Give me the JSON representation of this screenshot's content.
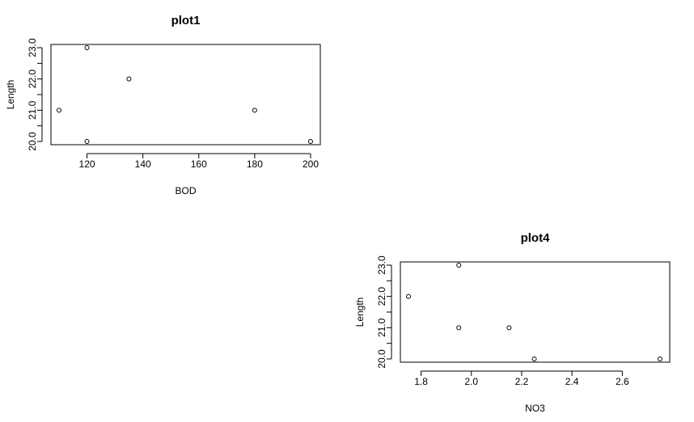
{
  "chart_data": [
    {
      "type": "scatter",
      "title": "plot1",
      "xlabel": "BOD",
      "ylabel": "Length",
      "xlim": [
        110,
        200
      ],
      "ylim": [
        20,
        23
      ],
      "xticks": [
        120,
        140,
        160,
        180,
        200
      ],
      "yticks": [
        20,
        21,
        22,
        23
      ],
      "xtick_labels": [
        "120",
        "140",
        "160",
        "180",
        "200"
      ],
      "ytick_labels": [
        "20.0",
        "21.0",
        "22.0",
        "23.0"
      ],
      "grid": false,
      "points": [
        {
          "x": 110,
          "y": 21
        },
        {
          "x": 120,
          "y": 23
        },
        {
          "x": 120,
          "y": 20
        },
        {
          "x": 135,
          "y": 22
        },
        {
          "x": 180,
          "y": 21
        },
        {
          "x": 200,
          "y": 20
        }
      ]
    },
    {
      "type": "scatter",
      "title": "plot4",
      "xlabel": "NO3",
      "ylabel": "Length",
      "xlim": [
        1.75,
        2.75
      ],
      "ylim": [
        20,
        23
      ],
      "xticks": [
        1.8,
        2.0,
        2.2,
        2.4,
        2.6
      ],
      "yticks": [
        20,
        21,
        22,
        23
      ],
      "xtick_labels": [
        "1.8",
        "2.0",
        "2.2",
        "2.4",
        "2.6"
      ],
      "ytick_labels": [
        "20.0",
        "21.0",
        "22.0",
        "23.0"
      ],
      "grid": false,
      "points": [
        {
          "x": 1.75,
          "y": 22
        },
        {
          "x": 1.95,
          "y": 23
        },
        {
          "x": 1.95,
          "y": 21
        },
        {
          "x": 2.15,
          "y": 21
        },
        {
          "x": 2.25,
          "y": 20
        },
        {
          "x": 2.75,
          "y": 20
        }
      ]
    }
  ]
}
